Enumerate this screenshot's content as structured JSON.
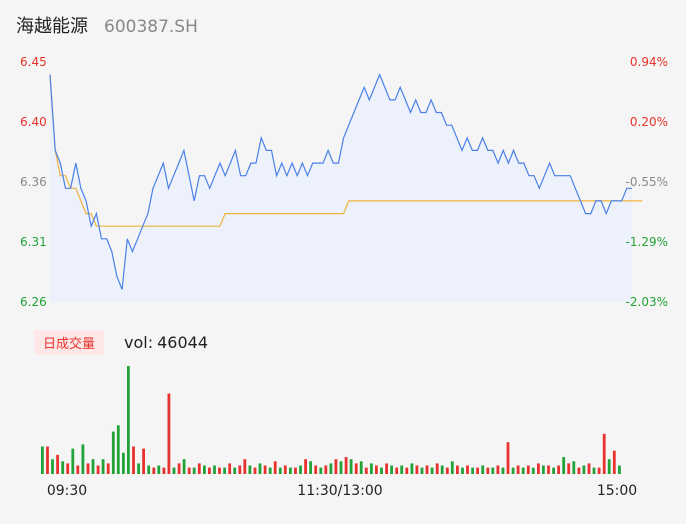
{
  "header": {
    "name": "海越能源",
    "code": "600387.SH"
  },
  "volume": {
    "tab_label": "日成交量",
    "label": "vol:",
    "value": "46044"
  },
  "colors": {
    "price": "#4a80e8",
    "avg": "#f0b33c",
    "up": "#e8322d",
    "down": "#22a33a",
    "neutral": "#888888",
    "area": "#ecf1fb"
  },
  "chart_data": [
    {
      "type": "line",
      "title": "",
      "x_ticks": [
        "09:30",
        "11:30/13:00",
        "15:00"
      ],
      "y_ticks_left": [
        "6.45",
        "6.40",
        "6.36",
        "6.31",
        "6.26"
      ],
      "y_ticks_right": [
        "0.94%",
        "0.20%",
        "-0.55%",
        "-1.29%",
        "-2.03%"
      ],
      "ylim": [
        6.26,
        6.45
      ],
      "series": [
        {
          "values": [
            6.44,
            6.38,
            6.37,
            6.35,
            6.35,
            6.37,
            6.35,
            6.34,
            6.32,
            6.33,
            6.31,
            6.31,
            6.3,
            6.28,
            6.27,
            6.31,
            6.3,
            6.31,
            6.32,
            6.33,
            6.35,
            6.36,
            6.37,
            6.35,
            6.36,
            6.37,
            6.38,
            6.36,
            6.34,
            6.36,
            6.36,
            6.35,
            6.36,
            6.37,
            6.36,
            6.37,
            6.38,
            6.36,
            6.36,
            6.37,
            6.37,
            6.39,
            6.38,
            6.38,
            6.36,
            6.37,
            6.36,
            6.37,
            6.36,
            6.37,
            6.36,
            6.37,
            6.37,
            6.37,
            6.38,
            6.37,
            6.37,
            6.39,
            6.4,
            6.41,
            6.42,
            6.43,
            6.42,
            6.43,
            6.44,
            6.43,
            6.42,
            6.42,
            6.43,
            6.42,
            6.41,
            6.42,
            6.41,
            6.41,
            6.42,
            6.41,
            6.41,
            6.4,
            6.4,
            6.39,
            6.38,
            6.39,
            6.38,
            6.38,
            6.39,
            6.38,
            6.38,
            6.37,
            6.38,
            6.37,
            6.38,
            6.37,
            6.37,
            6.36,
            6.36,
            6.35,
            6.36,
            6.37,
            6.36,
            6.36,
            6.36,
            6.36,
            6.35,
            6.34,
            6.33,
            6.33,
            6.34,
            6.34,
            6.33,
            6.34,
            6.34,
            6.34,
            6.35,
            6.35
          ],
          "color": "#4a80e8"
        },
        {
          "values": [
            6.44,
            6.38,
            6.36,
            6.36,
            6.35,
            6.35,
            6.34,
            6.33,
            6.33,
            6.32,
            6.32,
            6.32,
            6.32,
            6.32,
            6.32,
            6.32,
            6.32,
            6.32,
            6.32,
            6.32,
            6.32,
            6.32,
            6.32,
            6.32,
            6.32,
            6.32,
            6.32,
            6.32,
            6.32,
            6.32,
            6.32,
            6.32,
            6.32,
            6.32,
            6.33,
            6.33,
            6.33,
            6.33,
            6.33,
            6.33,
            6.33,
            6.33,
            6.33,
            6.33,
            6.33,
            6.33,
            6.33,
            6.33,
            6.33,
            6.33,
            6.33,
            6.33,
            6.33,
            6.33,
            6.33,
            6.33,
            6.33,
            6.33,
            6.34,
            6.34,
            6.34,
            6.34,
            6.34,
            6.34,
            6.34,
            6.34,
            6.34,
            6.34,
            6.34,
            6.34,
            6.34,
            6.34,
            6.34,
            6.34,
            6.34,
            6.34,
            6.34,
            6.34,
            6.34,
            6.34,
            6.34,
            6.34,
            6.34,
            6.34,
            6.34,
            6.34,
            6.34,
            6.34,
            6.34,
            6.34,
            6.34,
            6.34,
            6.34,
            6.34,
            6.34,
            6.34,
            6.34,
            6.34,
            6.34,
            6.34,
            6.34,
            6.34,
            6.34,
            6.34,
            6.34,
            6.34,
            6.34,
            6.34,
            6.34,
            6.34,
            6.34,
            6.34,
            6.34,
            6.34,
            6.34,
            6.34
          ],
          "color": "#f0b33c"
        }
      ]
    },
    {
      "type": "bar",
      "title": "",
      "volumes": [
        {
          "v": 26,
          "d": "down"
        },
        {
          "v": 26,
          "d": "up"
        },
        {
          "v": 14,
          "d": "down"
        },
        {
          "v": 18,
          "d": "up"
        },
        {
          "v": 12,
          "d": "down"
        },
        {
          "v": 10,
          "d": "up"
        },
        {
          "v": 24,
          "d": "down"
        },
        {
          "v": 8,
          "d": "up"
        },
        {
          "v": 28,
          "d": "down"
        },
        {
          "v": 10,
          "d": "up"
        },
        {
          "v": 14,
          "d": "down"
        },
        {
          "v": 8,
          "d": "up"
        },
        {
          "v": 14,
          "d": "down"
        },
        {
          "v": 10,
          "d": "up"
        },
        {
          "v": 40,
          "d": "down"
        },
        {
          "v": 46,
          "d": "down"
        },
        {
          "v": 20,
          "d": "down"
        },
        {
          "v": 102,
          "d": "down"
        },
        {
          "v": 26,
          "d": "up"
        },
        {
          "v": 10,
          "d": "down"
        },
        {
          "v": 24,
          "d": "up"
        },
        {
          "v": 8,
          "d": "down"
        },
        {
          "v": 6,
          "d": "up"
        },
        {
          "v": 8,
          "d": "down"
        },
        {
          "v": 6,
          "d": "up"
        },
        {
          "v": 76,
          "d": "up"
        },
        {
          "v": 6,
          "d": "down"
        },
        {
          "v": 10,
          "d": "up"
        },
        {
          "v": 14,
          "d": "down"
        },
        {
          "v": 6,
          "d": "up"
        },
        {
          "v": 6,
          "d": "down"
        },
        {
          "v": 10,
          "d": "up"
        },
        {
          "v": 8,
          "d": "down"
        },
        {
          "v": 6,
          "d": "up"
        },
        {
          "v": 8,
          "d": "down"
        },
        {
          "v": 6,
          "d": "up"
        },
        {
          "v": 6,
          "d": "down"
        },
        {
          "v": 10,
          "d": "up"
        },
        {
          "v": 6,
          "d": "down"
        },
        {
          "v": 8,
          "d": "up"
        },
        {
          "v": 14,
          "d": "up"
        },
        {
          "v": 8,
          "d": "down"
        },
        {
          "v": 6,
          "d": "up"
        },
        {
          "v": 10,
          "d": "down"
        },
        {
          "v": 8,
          "d": "up"
        },
        {
          "v": 6,
          "d": "down"
        },
        {
          "v": 12,
          "d": "up"
        },
        {
          "v": 6,
          "d": "down"
        },
        {
          "v": 8,
          "d": "up"
        },
        {
          "v": 6,
          "d": "down"
        },
        {
          "v": 6,
          "d": "up"
        },
        {
          "v": 8,
          "d": "down"
        },
        {
          "v": 14,
          "d": "up"
        },
        {
          "v": 12,
          "d": "down"
        },
        {
          "v": 8,
          "d": "up"
        },
        {
          "v": 6,
          "d": "down"
        },
        {
          "v": 8,
          "d": "up"
        },
        {
          "v": 10,
          "d": "down"
        },
        {
          "v": 14,
          "d": "up"
        },
        {
          "v": 12,
          "d": "down"
        },
        {
          "v": 16,
          "d": "up"
        },
        {
          "v": 14,
          "d": "down"
        },
        {
          "v": 10,
          "d": "up"
        },
        {
          "v": 12,
          "d": "down"
        },
        {
          "v": 6,
          "d": "up"
        },
        {
          "v": 10,
          "d": "down"
        },
        {
          "v": 8,
          "d": "up"
        },
        {
          "v": 6,
          "d": "down"
        },
        {
          "v": 10,
          "d": "up"
        },
        {
          "v": 8,
          "d": "down"
        },
        {
          "v": 6,
          "d": "up"
        },
        {
          "v": 8,
          "d": "down"
        },
        {
          "v": 6,
          "d": "up"
        },
        {
          "v": 10,
          "d": "down"
        },
        {
          "v": 8,
          "d": "up"
        },
        {
          "v": 6,
          "d": "down"
        },
        {
          "v": 8,
          "d": "up"
        },
        {
          "v": 6,
          "d": "down"
        },
        {
          "v": 10,
          "d": "up"
        },
        {
          "v": 8,
          "d": "down"
        },
        {
          "v": 6,
          "d": "up"
        },
        {
          "v": 12,
          "d": "down"
        },
        {
          "v": 8,
          "d": "up"
        },
        {
          "v": 6,
          "d": "down"
        },
        {
          "v": 8,
          "d": "up"
        },
        {
          "v": 6,
          "d": "down"
        },
        {
          "v": 6,
          "d": "up"
        },
        {
          "v": 8,
          "d": "down"
        },
        {
          "v": 6,
          "d": "up"
        },
        {
          "v": 6,
          "d": "down"
        },
        {
          "v": 8,
          "d": "up"
        },
        {
          "v": 6,
          "d": "down"
        },
        {
          "v": 30,
          "d": "up"
        },
        {
          "v": 6,
          "d": "down"
        },
        {
          "v": 8,
          "d": "up"
        },
        {
          "v": 6,
          "d": "down"
        },
        {
          "v": 8,
          "d": "up"
        },
        {
          "v": 6,
          "d": "down"
        },
        {
          "v": 10,
          "d": "up"
        },
        {
          "v": 8,
          "d": "down"
        },
        {
          "v": 8,
          "d": "up"
        },
        {
          "v": 6,
          "d": "down"
        },
        {
          "v": 8,
          "d": "up"
        },
        {
          "v": 16,
          "d": "down"
        },
        {
          "v": 10,
          "d": "up"
        },
        {
          "v": 12,
          "d": "down"
        },
        {
          "v": 6,
          "d": "up"
        },
        {
          "v": 8,
          "d": "down"
        },
        {
          "v": 10,
          "d": "up"
        },
        {
          "v": 6,
          "d": "down"
        },
        {
          "v": 6,
          "d": "up"
        },
        {
          "v": 38,
          "d": "up"
        },
        {
          "v": 14,
          "d": "down"
        },
        {
          "v": 22,
          "d": "up"
        },
        {
          "v": 8,
          "d": "down"
        }
      ]
    }
  ]
}
